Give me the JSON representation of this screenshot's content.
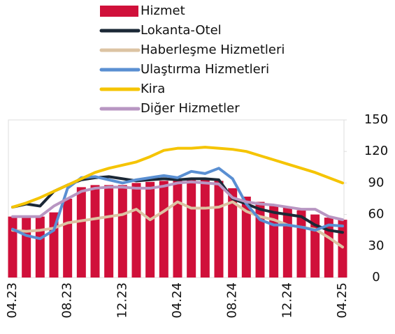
{
  "chart_data": {
    "type": "bar-line",
    "categories": [
      "04.23",
      null,
      null,
      null,
      "08.23",
      null,
      null,
      null,
      "12.23",
      null,
      null,
      null,
      "04.24",
      null,
      null,
      null,
      "08.24",
      null,
      null,
      null,
      "12.24",
      null,
      null,
      null,
      "04.25"
    ],
    "series": [
      {
        "name": "Hizmet",
        "type": "bar",
        "color": "#d0103a",
        "values": [
          58,
          57,
          58,
          62,
          75,
          86,
          88,
          88,
          88,
          90,
          91,
          92,
          93,
          94,
          93,
          92,
          85,
          77,
          72,
          69,
          67,
          64,
          60,
          57,
          55
        ]
      },
      {
        "name": "Lokanta-Otel",
        "type": "line",
        "color": "#1b2836",
        "values": [
          67,
          70,
          68,
          82,
          88,
          93,
          95,
          96,
          94,
          92,
          93,
          94,
          93,
          94,
          94,
          93,
          75,
          70,
          65,
          62,
          60,
          58,
          50,
          45,
          43
        ]
      },
      {
        "name": "Haberleşme Hizmetleri",
        "type": "line",
        "color": "#dcc3a3",
        "values": [
          45,
          44,
          45,
          47,
          52,
          54,
          56,
          58,
          60,
          65,
          55,
          63,
          72,
          66,
          66,
          67,
          72,
          63,
          58,
          55,
          50,
          48,
          46,
          38,
          29
        ]
      },
      {
        "name": "Ulaştırma Hizmetleri",
        "type": "line",
        "color": "#5a8fd2",
        "values": [
          46,
          40,
          37,
          45,
          85,
          95,
          96,
          93,
          90,
          93,
          95,
          97,
          95,
          101,
          99,
          104,
          94,
          70,
          55,
          50,
          50,
          48,
          45,
          50,
          49
        ]
      },
      {
        "name": "Kira",
        "type": "line",
        "color": "#f5c400",
        "values": [
          67,
          71,
          76,
          82,
          88,
          94,
          100,
          104,
          107,
          110,
          115,
          121,
          123,
          123,
          124,
          123,
          122,
          120,
          116,
          112,
          108,
          104,
          100,
          95,
          90
        ]
      },
      {
        "name": "Diğer Hizmetler",
        "type": "line",
        "color": "#b896c2",
        "values": [
          58,
          58,
          58,
          68,
          75,
          82,
          85,
          86,
          86,
          85,
          85,
          87,
          90,
          91,
          90,
          89,
          76,
          72,
          70,
          69,
          67,
          65,
          65,
          58,
          55
        ]
      }
    ],
    "ylim": [
      0,
      150
    ],
    "yticks": [
      0,
      30,
      60,
      90,
      120,
      150
    ],
    "grid": false,
    "legend": "top"
  }
}
